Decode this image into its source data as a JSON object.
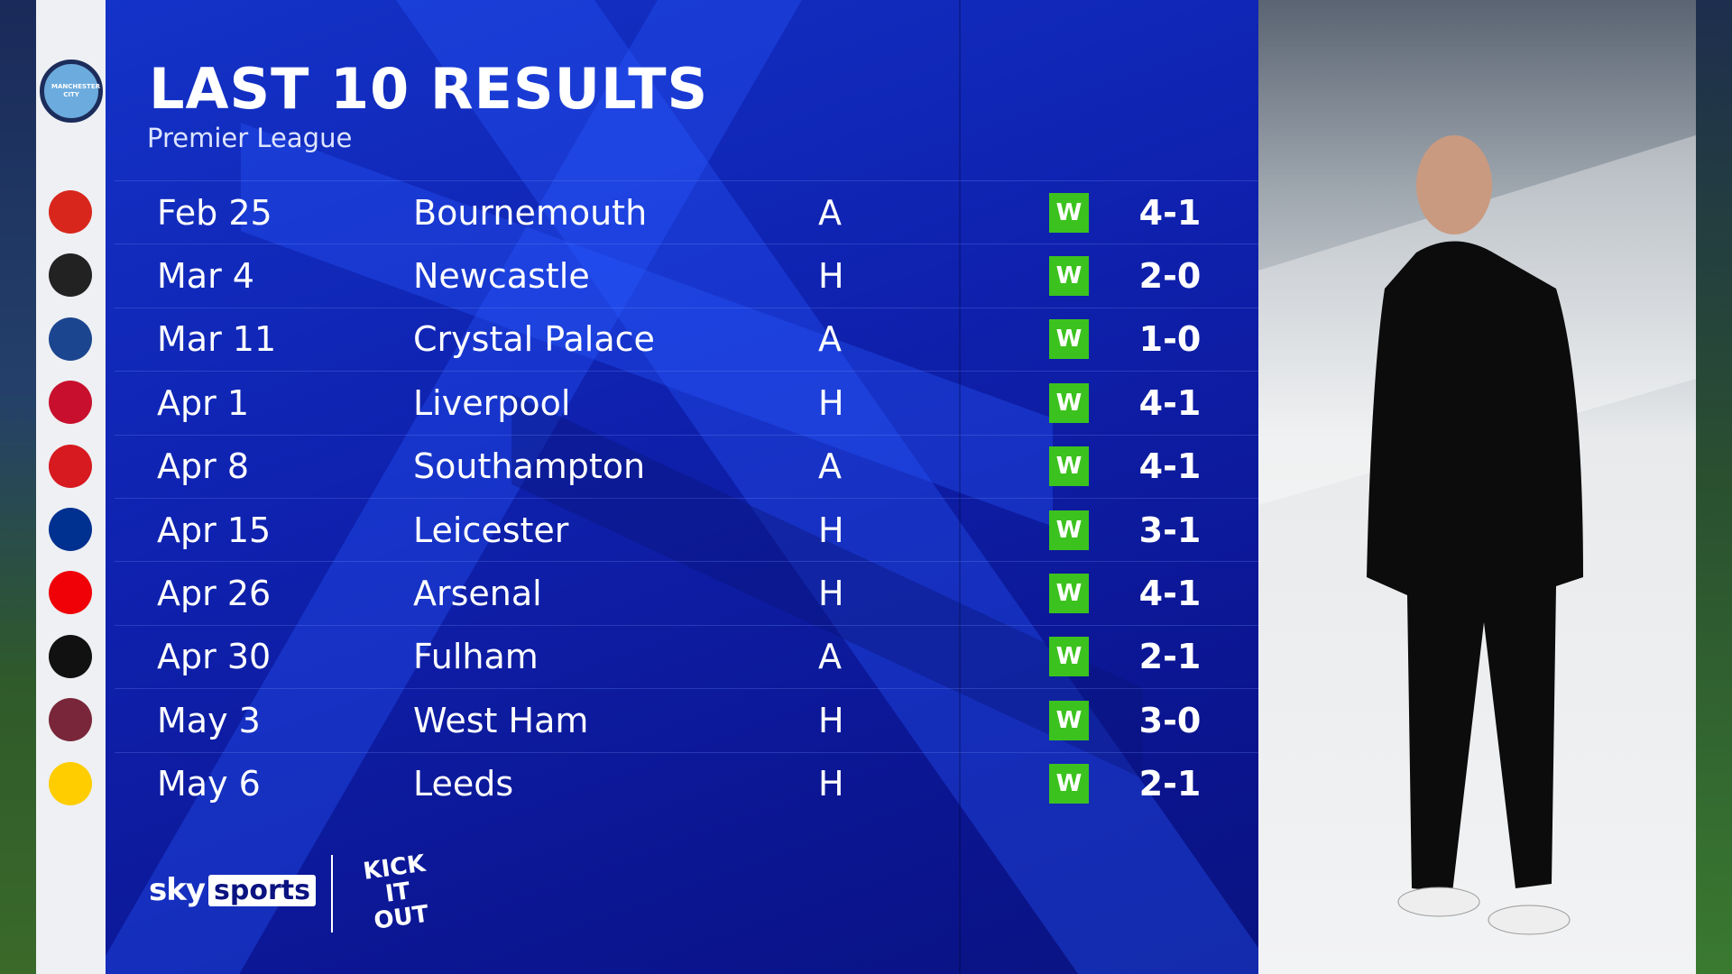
{
  "header": {
    "title": "LAST 10 RESULTS",
    "subtitle": "Premier League"
  },
  "team": {
    "name": "Manchester City",
    "crest_icon": "man-city-crest"
  },
  "colors": {
    "panel": "#1230c0",
    "win": "#3cc21e"
  },
  "results": [
    {
      "date": "Feb 25",
      "opponent": "Bournemouth",
      "venue": "A",
      "result": "W",
      "score": "4-1",
      "crest": "#d9261c"
    },
    {
      "date": "Mar 4",
      "opponent": "Newcastle",
      "venue": "H",
      "result": "W",
      "score": "2-0",
      "crest": "#222222"
    },
    {
      "date": "Mar 11",
      "opponent": "Crystal Palace",
      "venue": "A",
      "result": "W",
      "score": "1-0",
      "crest": "#1b458f"
    },
    {
      "date": "Apr 1",
      "opponent": "Liverpool",
      "venue": "H",
      "result": "W",
      "score": "4-1",
      "crest": "#c8102e"
    },
    {
      "date": "Apr 8",
      "opponent": "Southampton",
      "venue": "A",
      "result": "W",
      "score": "4-1",
      "crest": "#d71920"
    },
    {
      "date": "Apr 15",
      "opponent": "Leicester",
      "venue": "H",
      "result": "W",
      "score": "3-1",
      "crest": "#003090"
    },
    {
      "date": "Apr 26",
      "opponent": "Arsenal",
      "venue": "H",
      "result": "W",
      "score": "4-1",
      "crest": "#ef0107"
    },
    {
      "date": "Apr 30",
      "opponent": "Fulham",
      "venue": "A",
      "result": "W",
      "score": "2-1",
      "crest": "#111111"
    },
    {
      "date": "May 3",
      "opponent": "West Ham",
      "venue": "H",
      "result": "W",
      "score": "3-0",
      "crest": "#7a263a"
    },
    {
      "date": "May 6",
      "opponent": "Leeds",
      "venue": "H",
      "result": "W",
      "score": "2-1",
      "crest": "#ffcd00"
    }
  ],
  "footer": {
    "sky": "sky",
    "sports": "sports",
    "kick_it_out": "KICK IT OUT"
  }
}
